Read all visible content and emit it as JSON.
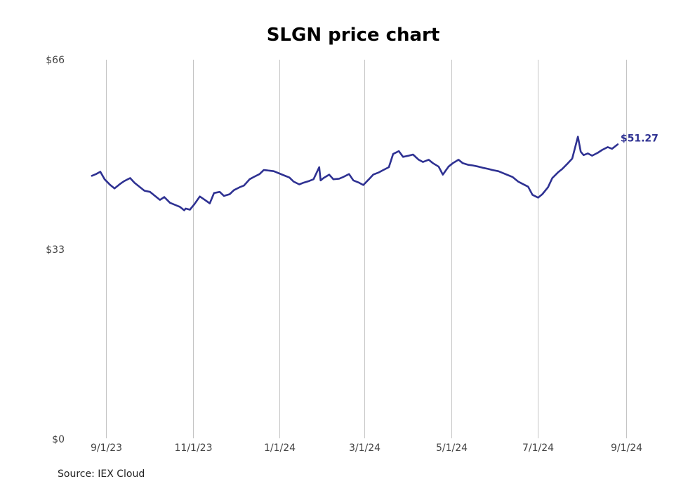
{
  "chart_data": {
    "type": "line",
    "title": "SLGN price chart",
    "xlabel": "",
    "ylabel": "",
    "ylim": [
      0,
      66
    ],
    "y_ticks": [
      {
        "value": 0,
        "label": "$0"
      },
      {
        "value": 33,
        "label": "$33"
      },
      {
        "value": 66,
        "label": "$66"
      }
    ],
    "x_ticks": [
      {
        "date": "2023-09-01",
        "label": "9/1/23"
      },
      {
        "date": "2023-11-01",
        "label": "11/1/23"
      },
      {
        "date": "2024-01-01",
        "label": "1/1/24"
      },
      {
        "date": "2024-03-01",
        "label": "3/1/24"
      },
      {
        "date": "2024-05-01",
        "label": "5/1/24"
      },
      {
        "date": "2024-07-01",
        "label": "7/1/24"
      },
      {
        "date": "2024-09-01",
        "label": "9/1/24"
      }
    ],
    "grid": {
      "vertical": true,
      "horizontal": false
    },
    "line_color": "#2e3192",
    "last_value_label": "$51.27",
    "series": [
      {
        "x": [
          "2023-08-22",
          "2023-08-25",
          "2023-08-28",
          "2023-08-31",
          "2023-09-04",
          "2023-09-07",
          "2023-09-11",
          "2023-09-14",
          "2023-09-18",
          "2023-09-21",
          "2023-09-25",
          "2023-09-28",
          "2023-10-02",
          "2023-10-05",
          "2023-10-09",
          "2023-10-12",
          "2023-10-16",
          "2023-10-19",
          "2023-10-23",
          "2023-10-26",
          "2023-10-27",
          "2023-10-30",
          "2023-11-02",
          "2023-11-06",
          "2023-11-09",
          "2023-11-13",
          "2023-11-16",
          "2023-11-20",
          "2023-11-23",
          "2023-11-27",
          "2023-11-30",
          "2023-12-04",
          "2023-12-07",
          "2023-12-11",
          "2023-12-14",
          "2023-12-18",
          "2023-12-21",
          "2023-12-25",
          "2023-12-28",
          "2024-01-01",
          "2024-01-04",
          "2024-01-08",
          "2024-01-11",
          "2024-01-15",
          "2024-01-18",
          "2024-01-22",
          "2024-01-25",
          "2024-01-29",
          "2024-01-30",
          "2024-02-01",
          "2024-02-05",
          "2024-02-08",
          "2024-02-12",
          "2024-02-15",
          "2024-02-19",
          "2024-02-22",
          "2024-02-26",
          "2024-02-29",
          "2024-03-04",
          "2024-03-07",
          "2024-03-11",
          "2024-03-14",
          "2024-03-18",
          "2024-03-21",
          "2024-03-25",
          "2024-03-28",
          "2024-04-01",
          "2024-04-04",
          "2024-04-08",
          "2024-04-11",
          "2024-04-15",
          "2024-04-18",
          "2024-04-22",
          "2024-04-25",
          "2024-04-29",
          "2024-05-02",
          "2024-05-06",
          "2024-05-09",
          "2024-05-13",
          "2024-05-16",
          "2024-05-20",
          "2024-05-23",
          "2024-05-27",
          "2024-05-30",
          "2024-06-03",
          "2024-06-06",
          "2024-06-10",
          "2024-06-13",
          "2024-06-17",
          "2024-06-20",
          "2024-06-24",
          "2024-06-27",
          "2024-07-01",
          "2024-07-04",
          "2024-07-08",
          "2024-07-11",
          "2024-07-15",
          "2024-07-18",
          "2024-07-22",
          "2024-07-25",
          "2024-07-29",
          "2024-07-31",
          "2024-08-02",
          "2024-08-05",
          "2024-08-08",
          "2024-08-12",
          "2024-08-15",
          "2024-08-19",
          "2024-08-22",
          "2024-08-26"
        ],
        "y": [
          45.8,
          46.1,
          46.5,
          45.2,
          44.2,
          43.6,
          44.4,
          44.9,
          45.4,
          44.6,
          43.8,
          43.2,
          43.0,
          42.4,
          41.6,
          42.1,
          41.1,
          40.8,
          40.4,
          39.8,
          40.1,
          39.9,
          40.8,
          42.2,
          41.7,
          41.0,
          42.8,
          43.0,
          42.3,
          42.6,
          43.3,
          43.8,
          44.1,
          45.2,
          45.6,
          46.1,
          46.8,
          46.7,
          46.6,
          46.2,
          45.9,
          45.5,
          44.8,
          44.3,
          44.6,
          44.9,
          45.2,
          47.3,
          45.0,
          45.4,
          46.0,
          45.2,
          45.3,
          45.6,
          46.1,
          45.0,
          44.6,
          44.2,
          45.2,
          46.0,
          46.4,
          46.8,
          47.3,
          49.6,
          50.1,
          49.1,
          49.3,
          49.5,
          48.6,
          48.2,
          48.6,
          48.0,
          47.4,
          46.0,
          47.4,
          48.0,
          48.6,
          48.0,
          47.7,
          47.6,
          47.4,
          47.2,
          47.0,
          46.8,
          46.6,
          46.3,
          45.9,
          45.6,
          44.8,
          44.4,
          43.9,
          42.5,
          42.0,
          42.6,
          43.8,
          45.4,
          46.4,
          47.0,
          48.0,
          48.8,
          52.6,
          50.0,
          49.4,
          49.7,
          49.3,
          49.8,
          50.3,
          50.8,
          50.5,
          51.27
        ]
      }
    ]
  },
  "source": "Source: IEX Cloud"
}
